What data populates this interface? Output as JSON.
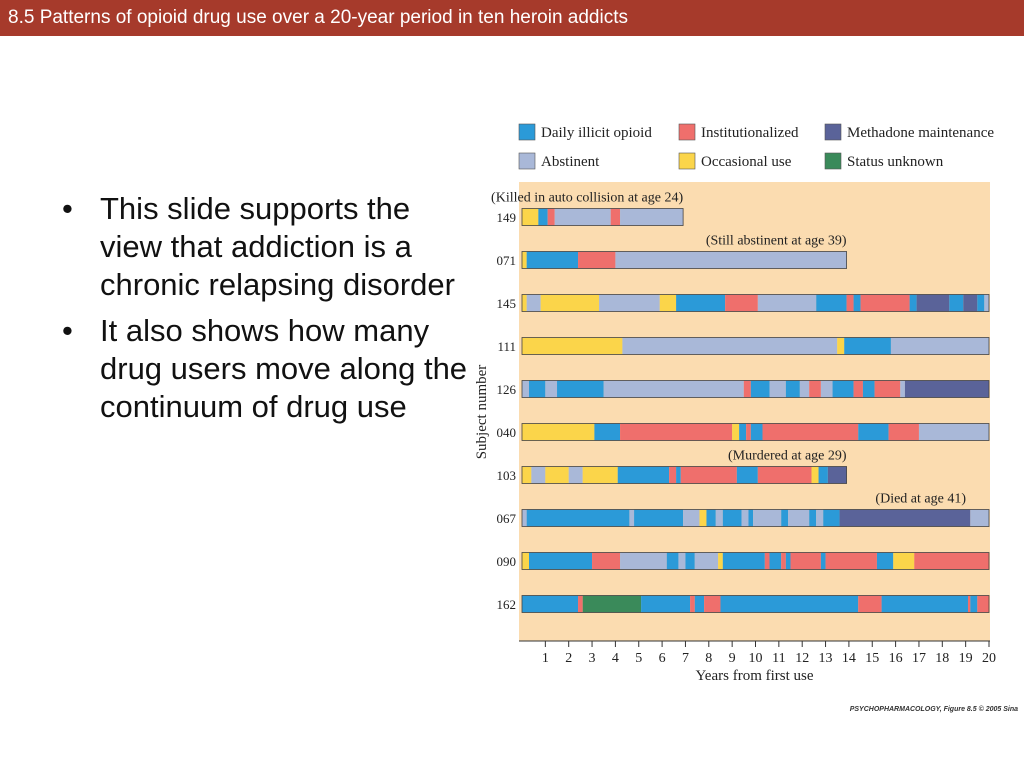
{
  "slide": {
    "title": "8.5  Patterns of opioid drug use over a 20-year period in ten heroin addicts",
    "bullets": [
      "This slide supports the view that addiction is a chronic relapsing disorder",
      "It also shows how many drug users move along the continuum of drug use"
    ],
    "credit": "PSYCHOPHARMACOLOGY, Figure 8.5  © 2005 Sina"
  },
  "colors": {
    "title_bar": "#a63a2b",
    "chart_background": "#fbdcb0",
    "daily": "#2b9ad8",
    "abstinent": "#a9b8d8",
    "institutionalized": "#ef6f6c",
    "occasional": "#fbd54a",
    "methadone": "#5a6399",
    "unknown": "#3a8a5a"
  },
  "chart_data": {
    "type": "timeline",
    "xlabel": "Years from first use",
    "ylabel": "Subject number",
    "xlim": [
      0,
      20
    ],
    "x_ticks": [
      1,
      2,
      3,
      4,
      5,
      6,
      7,
      8,
      9,
      10,
      11,
      12,
      13,
      14,
      15,
      16,
      17,
      18,
      19,
      20
    ],
    "legend_position": "top",
    "legend": [
      {
        "key": "daily",
        "label": "Daily illicit opioid"
      },
      {
        "key": "institutionalized",
        "label": "Institutionalized"
      },
      {
        "key": "methadone",
        "label": "Methadone maintenance"
      },
      {
        "key": "abstinent",
        "label": "Abstinent"
      },
      {
        "key": "occasional",
        "label": "Occasional use"
      },
      {
        "key": "unknown",
        "label": "Status unknown"
      }
    ],
    "subjects": [
      {
        "id": "149",
        "note": "(Killed in auto collision at age 24)",
        "segments": [
          {
            "s": "occasional",
            "from": 0,
            "to": 0.7
          },
          {
            "s": "daily",
            "from": 0.7,
            "to": 1.1
          },
          {
            "s": "institutionalized",
            "from": 1.1,
            "to": 1.4
          },
          {
            "s": "abstinent",
            "from": 1.4,
            "to": 3.8
          },
          {
            "s": "institutionalized",
            "from": 3.8,
            "to": 4.2
          },
          {
            "s": "abstinent",
            "from": 4.2,
            "to": 6.9
          }
        ]
      },
      {
        "id": "071",
        "note": "(Still abstinent at age 39)",
        "segments": [
          {
            "s": "occasional",
            "from": 0,
            "to": 0.2
          },
          {
            "s": "daily",
            "from": 0.2,
            "to": 2.4
          },
          {
            "s": "institutionalized",
            "from": 2.4,
            "to": 4.0
          },
          {
            "s": "abstinent",
            "from": 4.0,
            "to": 13.9
          }
        ]
      },
      {
        "id": "145",
        "note": "",
        "segments": [
          {
            "s": "occasional",
            "from": 0,
            "to": 0.2
          },
          {
            "s": "abstinent",
            "from": 0.2,
            "to": 0.8
          },
          {
            "s": "occasional",
            "from": 0.8,
            "to": 3.3
          },
          {
            "s": "abstinent",
            "from": 3.3,
            "to": 5.9
          },
          {
            "s": "occasional",
            "from": 5.9,
            "to": 6.6
          },
          {
            "s": "daily",
            "from": 6.6,
            "to": 8.7
          },
          {
            "s": "institutionalized",
            "from": 8.7,
            "to": 10.1
          },
          {
            "s": "abstinent",
            "from": 10.1,
            "to": 12.6
          },
          {
            "s": "daily",
            "from": 12.6,
            "to": 13.9
          },
          {
            "s": "institutionalized",
            "from": 13.9,
            "to": 14.2
          },
          {
            "s": "daily",
            "from": 14.2,
            "to": 14.5
          },
          {
            "s": "institutionalized",
            "from": 14.5,
            "to": 16.6
          },
          {
            "s": "daily",
            "from": 16.6,
            "to": 16.9
          },
          {
            "s": "methadone",
            "from": 16.9,
            "to": 18.3
          },
          {
            "s": "daily",
            "from": 18.3,
            "to": 18.9
          },
          {
            "s": "methadone",
            "from": 18.9,
            "to": 19.5
          },
          {
            "s": "daily",
            "from": 19.5,
            "to": 19.8
          },
          {
            "s": "abstinent",
            "from": 19.8,
            "to": 20
          }
        ]
      },
      {
        "id": "111",
        "note": "",
        "segments": [
          {
            "s": "occasional",
            "from": 0,
            "to": 4.3
          },
          {
            "s": "abstinent",
            "from": 4.3,
            "to": 13.5
          },
          {
            "s": "occasional",
            "from": 13.5,
            "to": 13.8
          },
          {
            "s": "daily",
            "from": 13.8,
            "to": 15.8
          },
          {
            "s": "abstinent",
            "from": 15.8,
            "to": 20
          }
        ]
      },
      {
        "id": "126",
        "note": "",
        "segments": [
          {
            "s": "abstinent",
            "from": 0,
            "to": 0.3
          },
          {
            "s": "daily",
            "from": 0.3,
            "to": 1.0
          },
          {
            "s": "abstinent",
            "from": 1.0,
            "to": 1.5
          },
          {
            "s": "daily",
            "from": 1.5,
            "to": 3.5
          },
          {
            "s": "abstinent",
            "from": 3.5,
            "to": 9.5
          },
          {
            "s": "institutionalized",
            "from": 9.5,
            "to": 9.8
          },
          {
            "s": "daily",
            "from": 9.8,
            "to": 10.6
          },
          {
            "s": "abstinent",
            "from": 10.6,
            "to": 11.3
          },
          {
            "s": "daily",
            "from": 11.3,
            "to": 11.9
          },
          {
            "s": "abstinent",
            "from": 11.9,
            "to": 12.3
          },
          {
            "s": "institutionalized",
            "from": 12.3,
            "to": 12.8
          },
          {
            "s": "abstinent",
            "from": 12.8,
            "to": 13.3
          },
          {
            "s": "daily",
            "from": 13.3,
            "to": 14.2
          },
          {
            "s": "institutionalized",
            "from": 14.2,
            "to": 14.6
          },
          {
            "s": "daily",
            "from": 14.6,
            "to": 15.1
          },
          {
            "s": "institutionalized",
            "from": 15.1,
            "to": 16.2
          },
          {
            "s": "abstinent",
            "from": 16.2,
            "to": 16.4
          },
          {
            "s": "methadone",
            "from": 16.4,
            "to": 20
          }
        ]
      },
      {
        "id": "040",
        "note": "",
        "segments": [
          {
            "s": "occasional",
            "from": 0,
            "to": 3.1
          },
          {
            "s": "daily",
            "from": 3.1,
            "to": 4.2
          },
          {
            "s": "institutionalized",
            "from": 4.2,
            "to": 9.0
          },
          {
            "s": "occasional",
            "from": 9.0,
            "to": 9.3
          },
          {
            "s": "daily",
            "from": 9.3,
            "to": 9.6
          },
          {
            "s": "institutionalized",
            "from": 9.6,
            "to": 9.8
          },
          {
            "s": "daily",
            "from": 9.8,
            "to": 10.3
          },
          {
            "s": "institutionalized",
            "from": 10.3,
            "to": 14.4
          },
          {
            "s": "daily",
            "from": 14.4,
            "to": 15.7
          },
          {
            "s": "institutionalized",
            "from": 15.7,
            "to": 17.0
          },
          {
            "s": "abstinent",
            "from": 17.0,
            "to": 20
          }
        ]
      },
      {
        "id": "103",
        "note": "(Murdered at age 29)",
        "segments": [
          {
            "s": "occasional",
            "from": 0,
            "to": 0.4
          },
          {
            "s": "abstinent",
            "from": 0.4,
            "to": 1.0
          },
          {
            "s": "occasional",
            "from": 1.0,
            "to": 2.0
          },
          {
            "s": "abstinent",
            "from": 2.0,
            "to": 2.6
          },
          {
            "s": "occasional",
            "from": 2.6,
            "to": 4.1
          },
          {
            "s": "daily",
            "from": 4.1,
            "to": 6.3
          },
          {
            "s": "institutionalized",
            "from": 6.3,
            "to": 6.6
          },
          {
            "s": "daily",
            "from": 6.6,
            "to": 6.8
          },
          {
            "s": "institutionalized",
            "from": 6.8,
            "to": 9.2
          },
          {
            "s": "daily",
            "from": 9.2,
            "to": 10.1
          },
          {
            "s": "institutionalized",
            "from": 10.1,
            "to": 12.4
          },
          {
            "s": "occasional",
            "from": 12.4,
            "to": 12.7
          },
          {
            "s": "daily",
            "from": 12.7,
            "to": 13.1
          },
          {
            "s": "methadone",
            "from": 13.1,
            "to": 13.9
          }
        ]
      },
      {
        "id": "067",
        "note": "(Died at age 41)",
        "segments": [
          {
            "s": "abstinent",
            "from": 0,
            "to": 0.2
          },
          {
            "s": "daily",
            "from": 0.2,
            "to": 4.6
          },
          {
            "s": "abstinent",
            "from": 4.6,
            "to": 4.8
          },
          {
            "s": "daily",
            "from": 4.8,
            "to": 6.9
          },
          {
            "s": "abstinent",
            "from": 6.9,
            "to": 7.6
          },
          {
            "s": "occasional",
            "from": 7.6,
            "to": 7.9
          },
          {
            "s": "daily",
            "from": 7.9,
            "to": 8.3
          },
          {
            "s": "abstinent",
            "from": 8.3,
            "to": 8.6
          },
          {
            "s": "daily",
            "from": 8.6,
            "to": 9.4
          },
          {
            "s": "abstinent",
            "from": 9.4,
            "to": 9.7
          },
          {
            "s": "daily",
            "from": 9.7,
            "to": 9.9
          },
          {
            "s": "abstinent",
            "from": 9.9,
            "to": 11.1
          },
          {
            "s": "daily",
            "from": 11.1,
            "to": 11.4
          },
          {
            "s": "abstinent",
            "from": 11.4,
            "to": 12.3
          },
          {
            "s": "daily",
            "from": 12.3,
            "to": 12.6
          },
          {
            "s": "abstinent",
            "from": 12.6,
            "to": 12.9
          },
          {
            "s": "daily",
            "from": 12.9,
            "to": 13.6
          },
          {
            "s": "methadone",
            "from": 13.6,
            "to": 19.2
          },
          {
            "s": "abstinent",
            "from": 19.2,
            "to": 20
          }
        ]
      },
      {
        "id": "090",
        "note": "",
        "segments": [
          {
            "s": "occasional",
            "from": 0,
            "to": 0.3
          },
          {
            "s": "daily",
            "from": 0.3,
            "to": 3.0
          },
          {
            "s": "institutionalized",
            "from": 3.0,
            "to": 4.2
          },
          {
            "s": "abstinent",
            "from": 4.2,
            "to": 6.2
          },
          {
            "s": "daily",
            "from": 6.2,
            "to": 6.7
          },
          {
            "s": "abstinent",
            "from": 6.7,
            "to": 7.0
          },
          {
            "s": "daily",
            "from": 7.0,
            "to": 7.4
          },
          {
            "s": "abstinent",
            "from": 7.4,
            "to": 8.4
          },
          {
            "s": "occasional",
            "from": 8.4,
            "to": 8.6
          },
          {
            "s": "daily",
            "from": 8.6,
            "to": 10.4
          },
          {
            "s": "institutionalized",
            "from": 10.4,
            "to": 10.6
          },
          {
            "s": "daily",
            "from": 10.6,
            "to": 11.1
          },
          {
            "s": "institutionalized",
            "from": 11.1,
            "to": 11.3
          },
          {
            "s": "daily",
            "from": 11.3,
            "to": 11.5
          },
          {
            "s": "institutionalized",
            "from": 11.5,
            "to": 12.8
          },
          {
            "s": "daily",
            "from": 12.8,
            "to": 13.0
          },
          {
            "s": "institutionalized",
            "from": 13.0,
            "to": 15.2
          },
          {
            "s": "daily",
            "from": 15.2,
            "to": 15.9
          },
          {
            "s": "occasional",
            "from": 15.9,
            "to": 16.8
          },
          {
            "s": "institutionalized",
            "from": 16.8,
            "to": 20
          }
        ]
      },
      {
        "id": "162",
        "note": "",
        "segments": [
          {
            "s": "daily",
            "from": 0,
            "to": 2.4
          },
          {
            "s": "institutionalized",
            "from": 2.4,
            "to": 2.6
          },
          {
            "s": "unknown",
            "from": 2.6,
            "to": 5.1
          },
          {
            "s": "daily",
            "from": 5.1,
            "to": 7.2
          },
          {
            "s": "institutionalized",
            "from": 7.2,
            "to": 7.4
          },
          {
            "s": "daily",
            "from": 7.4,
            "to": 7.8
          },
          {
            "s": "institutionalized",
            "from": 7.8,
            "to": 8.5
          },
          {
            "s": "daily",
            "from": 8.5,
            "to": 14.4
          },
          {
            "s": "institutionalized",
            "from": 14.4,
            "to": 15.4
          },
          {
            "s": "daily",
            "from": 15.4,
            "to": 19.1
          },
          {
            "s": "institutionalized",
            "from": 19.1,
            "to": 19.2
          },
          {
            "s": "daily",
            "from": 19.2,
            "to": 19.5
          },
          {
            "s": "institutionalized",
            "from": 19.5,
            "to": 20
          }
        ]
      }
    ]
  }
}
